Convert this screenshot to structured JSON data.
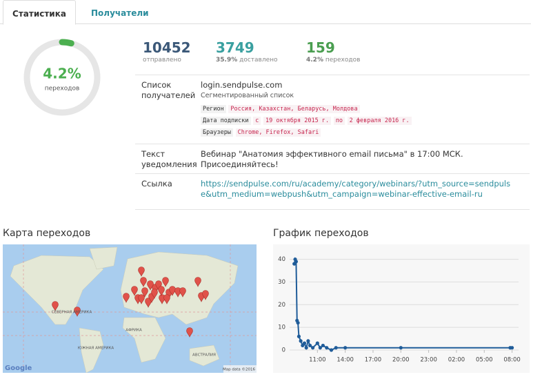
{
  "tabs": [
    "Статистика",
    "Получатели"
  ],
  "donut": {
    "value": 4.2,
    "label": "4.2%",
    "caption": "переходов",
    "color": "#4caf50"
  },
  "stats": [
    {
      "value": "10452",
      "caption": "отправлено"
    },
    {
      "value": "3749",
      "percent": "35.9%",
      "caption": "доставлено"
    },
    {
      "value": "159",
      "percent": "4.2%",
      "caption": "переходов"
    }
  ],
  "details": {
    "recipients": {
      "label": "Список получателей",
      "login": "login.sendpulse.com",
      "segment": "Сегментированный список",
      "region_tag": "Регион",
      "region": "Россия, Казахстан, Беларусь, Молдова",
      "date_tag": "Дата подписки",
      "date_from_word": "с",
      "date_from": "19 октября 2015 г.",
      "date_to_word": "по",
      "date_to": "2 февраля 2016 г.",
      "browser_tag": "Браузеры",
      "browsers": "Chrome, Firefox, Safari"
    },
    "text": {
      "label": "Текст уведомления",
      "value": "Вебинар \"Анатомия эффективного email письма\" в 17:00 МСК. Присоединяйтесь!"
    },
    "link": {
      "label": "Ссылка",
      "value": "https://sendpulse.com/ru/academy/category/webinars/?utm_source=sendpulse&utm_medium=webpush&utm_campaign=webinar-effective-email-ru"
    }
  },
  "map": {
    "title": "Карта переходов",
    "labels": [
      "СЕВЕРНАЯ АМЕРИКА",
      "АФРИКА",
      "ЮЖНАЯ АМЕРИКА",
      "АВСТРАЛИЯ"
    ],
    "logo": "Google",
    "attribution": "Map data ©2016"
  },
  "chart_data": {
    "type": "line",
    "title": "График переходов",
    "color": "#1f5c99",
    "x": [
      8.5,
      8.6,
      8.7,
      8.8,
      8.9,
      9.0,
      9.2,
      9.4,
      9.6,
      9.8,
      10.0,
      10.2,
      10.5,
      11.0,
      11.3,
      11.6,
      12.0,
      12.5,
      13.0,
      14.0,
      20.0,
      31.8,
      32.0
    ],
    "values": [
      38,
      40,
      39,
      13,
      12,
      6,
      4,
      2,
      3,
      1,
      4,
      2,
      1,
      3,
      1,
      2,
      1,
      0,
      1,
      1,
      1,
      1,
      1
    ],
    "xlim": [
      8,
      32.7
    ],
    "ylim": [
      0,
      42
    ],
    "yticks": [
      0,
      10,
      20,
      30,
      40
    ],
    "xticks": [
      {
        "value": 11,
        "label": "11:00"
      },
      {
        "value": 14,
        "label": "14:00"
      },
      {
        "value": 17,
        "label": "17:00"
      },
      {
        "value": 20,
        "label": "20:00"
      },
      {
        "value": 23,
        "label": "23:00"
      },
      {
        "value": 26,
        "label": "02:00"
      },
      {
        "value": 29,
        "label": "05:00"
      },
      {
        "value": 32,
        "label": "08:00"
      }
    ],
    "grid": true
  }
}
